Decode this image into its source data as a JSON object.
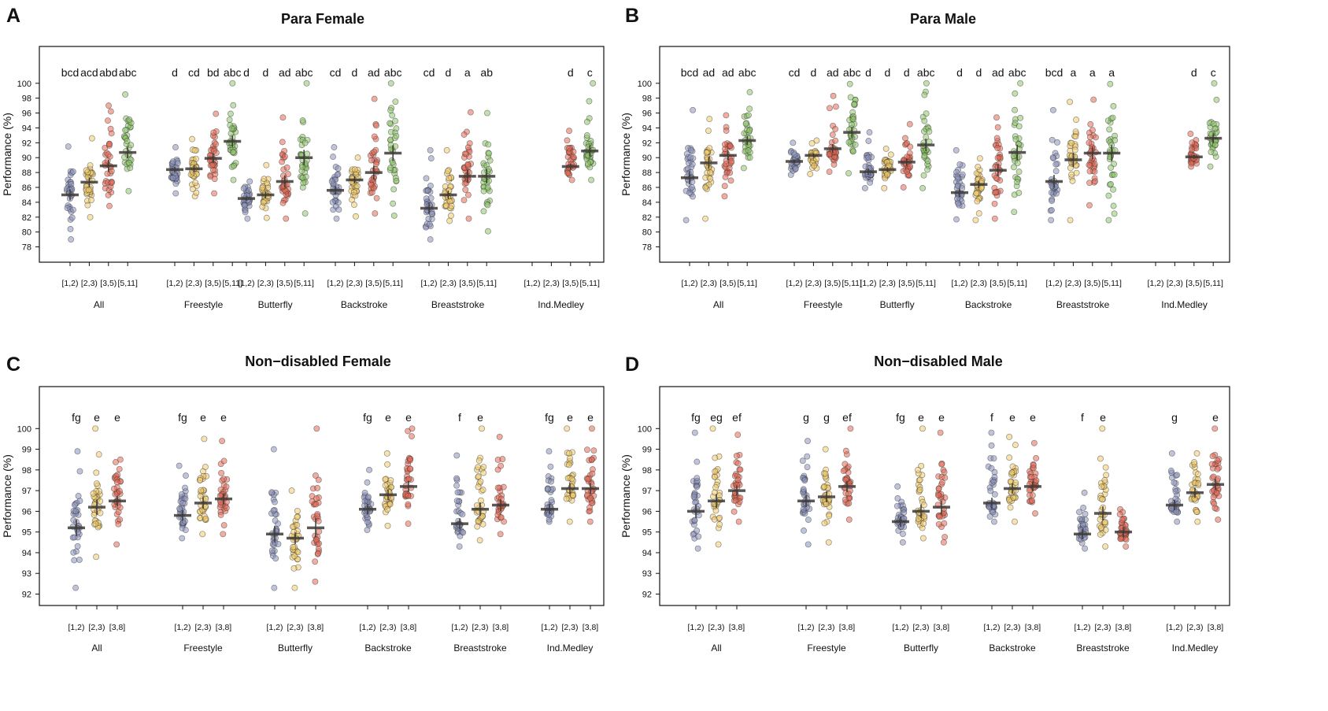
{
  "figure": {
    "palette": {
      "c1": "#8d93bd",
      "c2": "#f3cc6c",
      "c3": "#e56a55",
      "c4": "#8fc66b",
      "edge": "#333333",
      "bar": "#3d3a36"
    }
  },
  "chart_data": [
    {
      "type": "scatter",
      "panel": "A",
      "title": "Para Female",
      "ylabel": "Performance (%)",
      "ylim": [
        77,
        104
      ],
      "yticks": [
        78,
        80,
        82,
        84,
        86,
        88,
        90,
        92,
        94,
        96,
        98,
        100
      ],
      "bins": [
        "[1,2)",
        "[2,3)",
        "[3,5)",
        "[5,11]"
      ],
      "groups": [
        {
          "label": "All",
          "letters": [
            "bcd",
            "acd",
            "abd",
            "abc"
          ],
          "means": [
            85.0,
            86.7,
            88.9,
            90.7
          ],
          "lo": [
            79.0,
            82.0,
            83.5,
            85.5
          ],
          "hi": [
            91.5,
            92.6,
            97.0,
            98.5
          ]
        },
        {
          "label": "Freestyle",
          "letters": [
            "d",
            "cd",
            "bd",
            "abc"
          ],
          "means": [
            88.4,
            88.5,
            89.9,
            92.2
          ],
          "lo": [
            85.2,
            84.8,
            85.2,
            87.0
          ],
          "hi": [
            91.4,
            92.5,
            95.9,
            100.0
          ]
        },
        {
          "label": "Butterfly",
          "letters": [
            "d",
            "d",
            "ad",
            "abc"
          ],
          "means": [
            84.5,
            85.0,
            86.8,
            90.0
          ],
          "lo": [
            81.8,
            81.9,
            81.8,
            82.5
          ],
          "hi": [
            86.8,
            89.0,
            95.4,
            100.0
          ]
        },
        {
          "label": "Backstroke",
          "letters": [
            "cd",
            "d",
            "ad",
            "abc"
          ],
          "means": [
            85.6,
            87.0,
            88.0,
            90.6
          ],
          "lo": [
            81.8,
            82.1,
            82.5,
            82.2
          ],
          "hi": [
            91.4,
            90.0,
            97.9,
            100.0
          ]
        },
        {
          "label": "Breaststroke",
          "letters": [
            "cd",
            "d",
            "a",
            "ab"
          ],
          "means": [
            83.2,
            85.0,
            87.5,
            87.5
          ],
          "lo": [
            79.0,
            81.5,
            81.8,
            80.1
          ],
          "hi": [
            91.0,
            91.0,
            96.1,
            96.0
          ]
        },
        {
          "label": "Ind.Medley",
          "letters": [
            "",
            "",
            "d",
            "c"
          ],
          "means": [
            null,
            null,
            88.8,
            90.9
          ],
          "lo": [
            null,
            null,
            87.0,
            87.0
          ],
          "hi": [
            null,
            null,
            93.6,
            100.0
          ]
        }
      ]
    },
    {
      "type": "scatter",
      "panel": "B",
      "title": "Para Male",
      "ylabel": "Performance (%)",
      "ylim": [
        77,
        104
      ],
      "yticks": [
        78,
        80,
        82,
        84,
        86,
        88,
        90,
        92,
        94,
        96,
        98,
        100
      ],
      "bins": [
        "[1,2)",
        "[2,3)",
        "[3,5)",
        "[5,11]"
      ],
      "groups": [
        {
          "label": "All",
          "letters": [
            "bcd",
            "ad",
            "ad",
            "abc"
          ],
          "means": [
            87.3,
            89.3,
            90.3,
            92.3
          ],
          "lo": [
            81.6,
            81.8,
            84.8,
            88.6
          ],
          "hi": [
            96.4,
            95.2,
            95.7,
            98.8
          ]
        },
        {
          "label": "Freestyle",
          "letters": [
            "cd",
            "d",
            "ad",
            "abc"
          ],
          "means": [
            89.5,
            90.3,
            91.2,
            93.4
          ],
          "lo": [
            87.7,
            87.8,
            88.1,
            87.9
          ],
          "hi": [
            92.0,
            92.3,
            98.3,
            99.9
          ]
        },
        {
          "label": "Butterfly",
          "letters": [
            "d",
            "d",
            "d",
            "abc"
          ],
          "means": [
            88.1,
            88.4,
            89.4,
            91.7
          ],
          "lo": [
            85.9,
            85.9,
            86.0,
            85.9
          ],
          "hi": [
            93.4,
            91.2,
            94.5,
            100.0
          ]
        },
        {
          "label": "Backstroke",
          "letters": [
            "d",
            "d",
            "ad",
            "abc"
          ],
          "means": [
            85.3,
            86.4,
            88.3,
            90.7
          ],
          "lo": [
            81.7,
            81.6,
            81.8,
            82.7
          ],
          "hi": [
            91.0,
            89.9,
            95.4,
            100.0
          ]
        },
        {
          "label": "Breaststroke",
          "letters": [
            "bcd",
            "a",
            "a",
            "a"
          ],
          "means": [
            86.8,
            89.7,
            90.6,
            90.6
          ],
          "lo": [
            81.6,
            81.6,
            83.6,
            81.6
          ],
          "hi": [
            96.4,
            97.5,
            97.8,
            99.9
          ]
        },
        {
          "label": "Ind.Medley",
          "letters": [
            "",
            "",
            "d",
            "c"
          ],
          "means": [
            null,
            null,
            90.1,
            92.6
          ],
          "lo": [
            null,
            null,
            88.8,
            88.8
          ],
          "hi": [
            null,
            null,
            93.2,
            100.0
          ]
        }
      ]
    },
    {
      "type": "scatter",
      "panel": "C",
      "title": "Non−disabled Female",
      "ylabel": "Performance (%)",
      "ylim": [
        91.6,
        101.8
      ],
      "yticks": [
        92,
        93,
        94,
        95,
        96,
        97,
        98,
        99,
        100
      ],
      "bins": [
        "[1,2)",
        "[2,3)",
        "[3,8]"
      ],
      "groups": [
        {
          "label": "All",
          "letters": [
            "fg",
            "e",
            "e"
          ],
          "means": [
            95.2,
            96.2,
            96.5
          ],
          "lo": [
            92.3,
            93.8,
            94.4
          ],
          "hi": [
            98.9,
            100.0,
            98.5
          ]
        },
        {
          "label": "Freestyle",
          "letters": [
            "fg",
            "e",
            "e"
          ],
          "means": [
            95.8,
            96.4,
            96.6
          ],
          "lo": [
            94.7,
            94.9,
            94.9
          ],
          "hi": [
            98.2,
            99.5,
            99.4
          ]
        },
        {
          "label": "Butterfly",
          "letters": [
            "",
            "",
            ""
          ],
          "means": [
            94.9,
            94.7,
            95.2
          ],
          "lo": [
            92.3,
            92.3,
            92.6
          ],
          "hi": [
            99.0,
            97.0,
            100.0
          ]
        },
        {
          "label": "Backstroke",
          "letters": [
            "fg",
            "e",
            "e"
          ],
          "means": [
            96.1,
            96.8,
            97.2
          ],
          "lo": [
            95.1,
            95.3,
            95.4
          ],
          "hi": [
            98.0,
            98.8,
            100.0
          ]
        },
        {
          "label": "Breaststroke",
          "letters": [
            "f",
            "e",
            ""
          ],
          "means": [
            95.4,
            96.1,
            96.3
          ],
          "lo": [
            94.3,
            94.6,
            94.9
          ],
          "hi": [
            98.7,
            100.0,
            99.6
          ]
        },
        {
          "label": "Ind.Medley",
          "letters": [
            "fg",
            "e",
            "e"
          ],
          "means": [
            96.1,
            97.1,
            97.1
          ],
          "lo": [
            95.5,
            95.5,
            95.5
          ],
          "hi": [
            98.9,
            100.0,
            100.0
          ]
        }
      ]
    },
    {
      "type": "scatter",
      "panel": "D",
      "title": "Non−disabled Male",
      "ylabel": "Performance (%)",
      "ylim": [
        91.6,
        101.8
      ],
      "yticks": [
        92,
        93,
        94,
        95,
        96,
        97,
        98,
        99,
        100
      ],
      "bins": [
        "[1,2)",
        "[2,3)",
        "[3,8]"
      ],
      "groups": [
        {
          "label": "All",
          "letters": [
            "fg",
            "eg",
            "ef"
          ],
          "means": [
            96.0,
            96.5,
            97.0
          ],
          "lo": [
            94.2,
            94.4,
            95.5
          ],
          "hi": [
            99.8,
            100.0,
            99.7
          ]
        },
        {
          "label": "Freestyle",
          "letters": [
            "g",
            "g",
            "ef"
          ],
          "means": [
            96.5,
            96.7,
            97.2
          ],
          "lo": [
            94.4,
            94.5,
            95.6
          ],
          "hi": [
            99.4,
            99.0,
            100.0
          ]
        },
        {
          "label": "Butterfly",
          "letters": [
            "fg",
            "e",
            "e"
          ],
          "means": [
            95.5,
            96.0,
            96.2
          ],
          "lo": [
            94.5,
            94.7,
            94.5
          ],
          "hi": [
            97.2,
            100.0,
            99.8
          ]
        },
        {
          "label": "Backstroke",
          "letters": [
            "f",
            "e",
            "e"
          ],
          "means": [
            96.4,
            97.1,
            97.2
          ],
          "lo": [
            95.5,
            95.5,
            95.9
          ],
          "hi": [
            99.8,
            99.6,
            99.3
          ]
        },
        {
          "label": "Breaststroke",
          "letters": [
            "f",
            "e",
            ""
          ],
          "means": [
            94.9,
            95.9,
            95.0
          ],
          "lo": [
            94.2,
            94.3,
            94.3
          ],
          "hi": [
            96.9,
            100.0,
            96.1
          ]
        },
        {
          "label": "Ind.Medley",
          "letters": [
            "g",
            "",
            "e"
          ],
          "means": [
            96.3,
            96.9,
            97.3
          ],
          "lo": [
            95.5,
            95.5,
            95.6
          ],
          "hi": [
            98.8,
            98.8,
            100.0
          ]
        }
      ]
    }
  ]
}
